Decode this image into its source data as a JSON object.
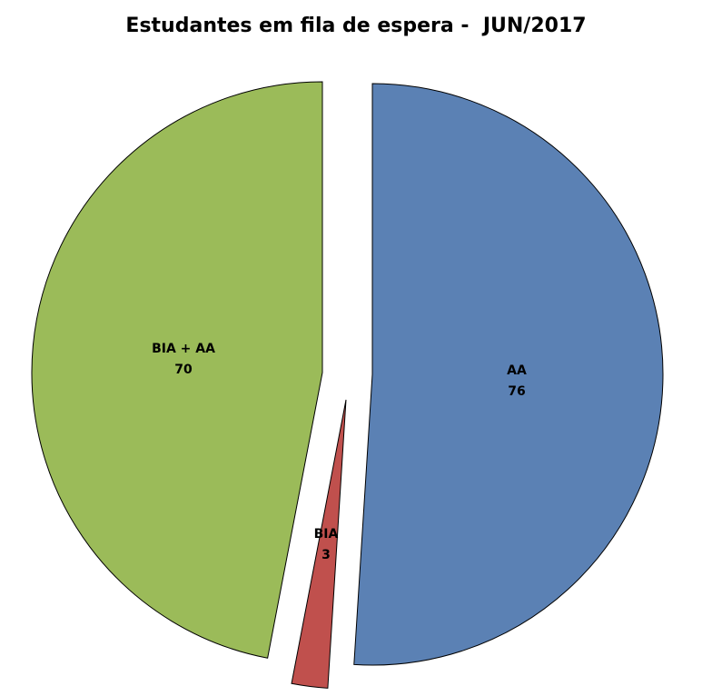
{
  "chart_data": {
    "type": "pie",
    "title": "Estudantes em fila de espera -  JUN/2017",
    "exploded": true,
    "start": "12 o'clock, clockwise",
    "slices": [
      {
        "label": "AA",
        "value": 76,
        "color": "#5b81b4"
      },
      {
        "label": "BIA",
        "value": 3,
        "color": "#c0504d"
      },
      {
        "label": "BIA + AA",
        "value": 70,
        "color": "#9bbb59"
      }
    ]
  }
}
